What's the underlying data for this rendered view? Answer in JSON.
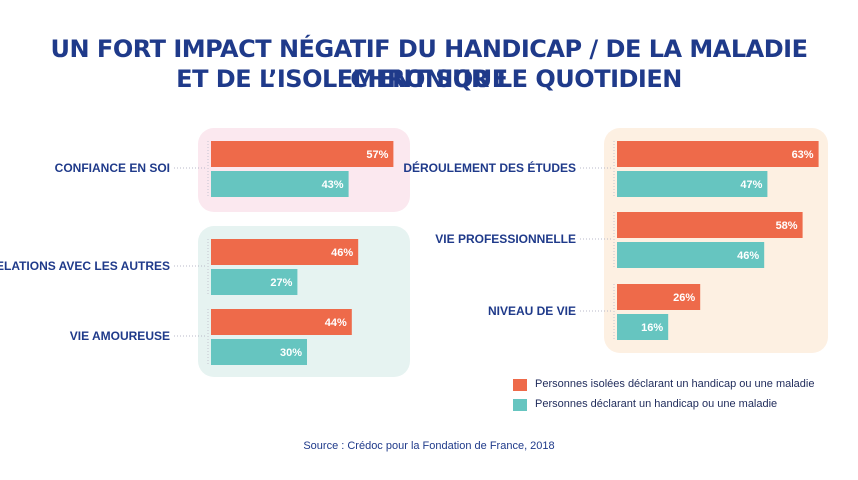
{
  "title": {
    "line1": "UN FORT IMPACT NÉGATIF DU HANDICAP / DE LA MALADIE CHRONIQUE",
    "line2": "ET DE L’ISOLEMENT SUR LE QUOTIDIEN"
  },
  "colors": {
    "series_isolated": "#ee6a4a",
    "series_all": "#66c5c0",
    "title": "#1f3a8a",
    "group_pink": "#fbe8ef",
    "group_teal": "#e6f3f1",
    "group_peach": "#fdf0e2"
  },
  "legend": [
    {
      "label": "Personnes isolées déclarant un handicap ou une maladie",
      "color": "#ee6a4a"
    },
    {
      "label": "Personnes déclarant un handicap ou une maladie",
      "color": "#66c5c0"
    }
  ],
  "source": "Source : Crédoc pour la Fondation de France, 2018",
  "chart_data": {
    "type": "bar",
    "orientation": "horizontal",
    "unit": "%",
    "series": [
      {
        "name": "Personnes isolées déclarant un handicap ou une maladie"
      },
      {
        "name": "Personnes déclarant un handicap ou une maladie"
      }
    ],
    "panels": [
      {
        "categories": [
          {
            "label": "CONFIANCE EN SOI",
            "values": [
              57,
              43
            ],
            "labels": [
              "57%",
              "43%"
            ],
            "background": "pink"
          },
          {
            "label": "RELATIONS AVEC LES AUTRES",
            "values": [
              46,
              27
            ],
            "labels": [
              "46%",
              "27%"
            ],
            "background": "teal"
          },
          {
            "label": "VIE AMOUREUSE",
            "values": [
              44,
              30
            ],
            "labels": [
              "44%",
              "30%"
            ],
            "background": "teal"
          }
        ]
      },
      {
        "categories": [
          {
            "label": "DÉROULEMENT DES ÉTUDES",
            "values": [
              63,
              47
            ],
            "labels": [
              "63%",
              "47%"
            ],
            "background": "peach"
          },
          {
            "label": "VIE PROFESSIONNELLE",
            "values": [
              58,
              46
            ],
            "labels": [
              "58%",
              "46%"
            ],
            "background": "peach"
          },
          {
            "label": "NIVEAU DE VIE",
            "values": [
              26,
              16
            ],
            "labels": [
              "26%",
              "16%"
            ],
            "background": "peach"
          }
        ]
      }
    ]
  }
}
